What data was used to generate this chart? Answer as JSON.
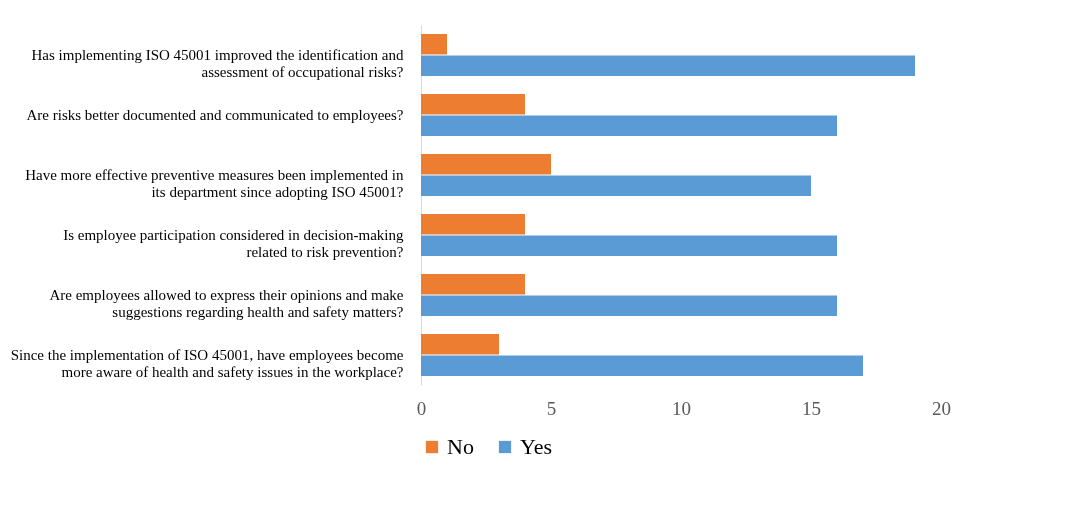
{
  "chart_data": {
    "type": "bar",
    "orientation": "horizontal",
    "categories": [
      "Has implementing ISO 45001 improved the identification and assessment of occupational risks?",
      "Are risks better documented and communicated to employees?",
      "Have more effective preventive measures been implemented in its department since adopting ISO 45001?",
      "Is employee participation considered in decision-making related to risk prevention?",
      "Are employees allowed to express their opinions and make suggestions regarding health and safety matters?",
      "Since the implementation of ISO 45001, have employees become more aware of health and safety issues in the workplace?"
    ],
    "series": [
      {
        "name": "No",
        "color": "#ed7d31",
        "values": [
          1,
          4,
          5,
          4,
          4,
          3
        ]
      },
      {
        "name": "Yes",
        "color": "#5b9bd5",
        "values": [
          19,
          16,
          15,
          16,
          16,
          17
        ]
      }
    ],
    "xlim": [
      0,
      20
    ],
    "xticks": [
      0,
      5,
      10,
      15,
      20
    ],
    "grid": false,
    "legend": "bottom"
  }
}
